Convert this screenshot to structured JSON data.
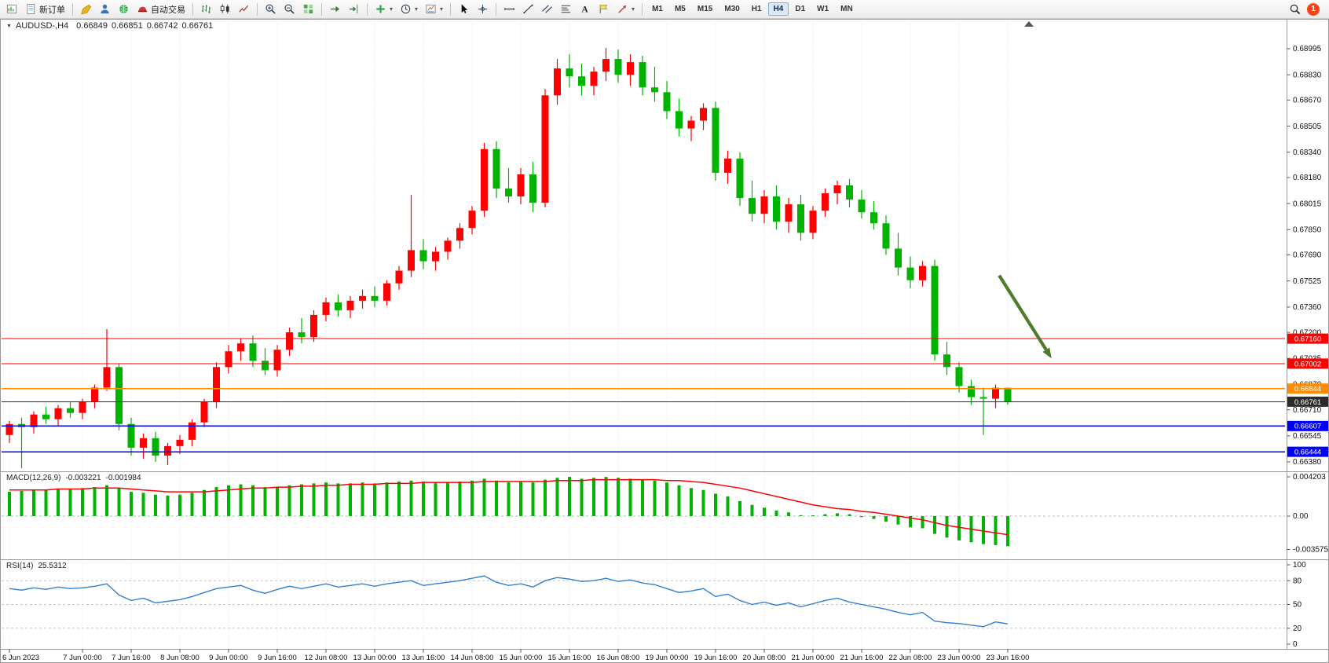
{
  "toolbar": {
    "new_order_label": "新订单",
    "autotrading_label": "自动交易",
    "timeframes": [
      "M1",
      "M5",
      "M15",
      "M30",
      "H1",
      "H4",
      "D1",
      "W1",
      "MN"
    ],
    "active_timeframe": "H4",
    "notification_count": "1"
  },
  "chart": {
    "symbol": "AUDUSD-,H4",
    "open": "0.66849",
    "high": "0.66851",
    "low": "0.66742",
    "close": "0.66761"
  },
  "indicators": {
    "macd_label": "MACD(12,26,9)",
    "macd_main_value": "-0.003221",
    "macd_signal_value": "-0.001984",
    "rsi_label": "RSI(14)",
    "rsi_value": "25.5312"
  },
  "chart_data": {
    "type": "candlestick",
    "symbol": "AUDUSD",
    "timeframe": "H4",
    "up_color": "#ff0000",
    "down_color": "#00b300",
    "candles_ohlc": [
      [
        0.6655,
        0.6664,
        0.665,
        0.6662
      ],
      [
        0.6662,
        0.6666,
        0.6634,
        0.666
      ],
      [
        0.666,
        0.667,
        0.6656,
        0.6668
      ],
      [
        0.6668,
        0.6673,
        0.6662,
        0.6665
      ],
      [
        0.6665,
        0.6674,
        0.6661,
        0.6672
      ],
      [
        0.6672,
        0.6676,
        0.6666,
        0.6669
      ],
      [
        0.6669,
        0.6678,
        0.6665,
        0.6676
      ],
      [
        0.6676,
        0.6687,
        0.6672,
        0.6685
      ],
      [
        0.6685,
        0.6722,
        0.6683,
        0.6698
      ],
      [
        0.6698,
        0.67,
        0.6658,
        0.6662
      ],
      [
        0.6662,
        0.6666,
        0.6642,
        0.6647
      ],
      [
        0.6647,
        0.6656,
        0.664,
        0.6653
      ],
      [
        0.6653,
        0.6657,
        0.6638,
        0.6642
      ],
      [
        0.6642,
        0.665,
        0.6636,
        0.6648
      ],
      [
        0.6648,
        0.6655,
        0.6643,
        0.6652
      ],
      [
        0.6652,
        0.6665,
        0.6648,
        0.6663
      ],
      [
        0.6663,
        0.6678,
        0.666,
        0.6676
      ],
      [
        0.6676,
        0.6701,
        0.6672,
        0.6698
      ],
      [
        0.6698,
        0.6712,
        0.6694,
        0.6708
      ],
      [
        0.6708,
        0.6716,
        0.6702,
        0.6713
      ],
      [
        0.6713,
        0.6718,
        0.6698,
        0.6702
      ],
      [
        0.6702,
        0.671,
        0.6693,
        0.6696
      ],
      [
        0.6696,
        0.6712,
        0.6692,
        0.6709
      ],
      [
        0.6709,
        0.6723,
        0.6705,
        0.672
      ],
      [
        0.672,
        0.6729,
        0.6713,
        0.6717
      ],
      [
        0.6717,
        0.6734,
        0.6714,
        0.6731
      ],
      [
        0.6731,
        0.6742,
        0.6727,
        0.6739
      ],
      [
        0.6739,
        0.6744,
        0.673,
        0.6734
      ],
      [
        0.6734,
        0.6743,
        0.6729,
        0.674
      ],
      [
        0.674,
        0.6747,
        0.6735,
        0.6743
      ],
      [
        0.6743,
        0.6749,
        0.6736,
        0.674
      ],
      [
        0.674,
        0.6753,
        0.6737,
        0.6751
      ],
      [
        0.6751,
        0.6762,
        0.6747,
        0.6759
      ],
      [
        0.6759,
        0.6807,
        0.6755,
        0.6772
      ],
      [
        0.6772,
        0.6779,
        0.676,
        0.6765
      ],
      [
        0.6765,
        0.6774,
        0.6759,
        0.6771
      ],
      [
        0.6771,
        0.678,
        0.6766,
        0.6778
      ],
      [
        0.6778,
        0.6789,
        0.6773,
        0.6786
      ],
      [
        0.6786,
        0.68,
        0.6782,
        0.6797
      ],
      [
        0.6797,
        0.684,
        0.6793,
        0.6836
      ],
      [
        0.6836,
        0.6841,
        0.6805,
        0.6811
      ],
      [
        0.6811,
        0.6824,
        0.6802,
        0.6806
      ],
      [
        0.6806,
        0.6824,
        0.6801,
        0.682
      ],
      [
        0.682,
        0.6828,
        0.6796,
        0.6802
      ],
      [
        0.6802,
        0.6874,
        0.6799,
        0.687
      ],
      [
        0.687,
        0.6893,
        0.6864,
        0.6887
      ],
      [
        0.6887,
        0.6896,
        0.6875,
        0.6882
      ],
      [
        0.6882,
        0.689,
        0.687,
        0.6876
      ],
      [
        0.6876,
        0.6888,
        0.687,
        0.6885
      ],
      [
        0.6885,
        0.69,
        0.6879,
        0.6893
      ],
      [
        0.6893,
        0.6899,
        0.6878,
        0.6883
      ],
      [
        0.6883,
        0.6896,
        0.6876,
        0.6891
      ],
      [
        0.6891,
        0.6895,
        0.687,
        0.6875
      ],
      [
        0.6875,
        0.6888,
        0.6866,
        0.6872
      ],
      [
        0.6872,
        0.6879,
        0.6855,
        0.686
      ],
      [
        0.686,
        0.6868,
        0.6844,
        0.6849
      ],
      [
        0.6849,
        0.6857,
        0.6841,
        0.6854
      ],
      [
        0.6854,
        0.6865,
        0.6848,
        0.6862
      ],
      [
        0.6862,
        0.6866,
        0.6816,
        0.6821
      ],
      [
        0.6821,
        0.6835,
        0.6814,
        0.683
      ],
      [
        0.683,
        0.6834,
        0.68,
        0.6805
      ],
      [
        0.6805,
        0.6816,
        0.679,
        0.6795
      ],
      [
        0.6795,
        0.681,
        0.6789,
        0.6806
      ],
      [
        0.6806,
        0.6813,
        0.6785,
        0.679
      ],
      [
        0.679,
        0.6805,
        0.6783,
        0.6801
      ],
      [
        0.6801,
        0.6807,
        0.6778,
        0.6783
      ],
      [
        0.6783,
        0.68,
        0.6779,
        0.6797
      ],
      [
        0.6797,
        0.6811,
        0.6793,
        0.6808
      ],
      [
        0.6808,
        0.6816,
        0.6801,
        0.6813
      ],
      [
        0.6813,
        0.6817,
        0.6799,
        0.6804
      ],
      [
        0.6804,
        0.681,
        0.6792,
        0.6796
      ],
      [
        0.6796,
        0.6803,
        0.6785,
        0.6789
      ],
      [
        0.6789,
        0.6794,
        0.6769,
        0.6773
      ],
      [
        0.6773,
        0.6783,
        0.6756,
        0.6761
      ],
      [
        0.6761,
        0.6768,
        0.6748,
        0.6753
      ],
      [
        0.6753,
        0.6765,
        0.6749,
        0.6762
      ],
      [
        0.6762,
        0.6766,
        0.6702,
        0.6706
      ],
      [
        0.6706,
        0.6714,
        0.6693,
        0.6698
      ],
      [
        0.6698,
        0.6701,
        0.6682,
        0.6686
      ],
      [
        0.6686,
        0.669,
        0.6674,
        0.6679
      ],
      [
        0.6679,
        0.6685,
        0.6655,
        0.6678
      ],
      [
        0.6678,
        0.6687,
        0.6672,
        0.66849
      ],
      [
        0.66849,
        0.66851,
        0.66742,
        0.66761
      ]
    ],
    "horizontal_lines": [
      {
        "price": 0.6716,
        "color": "#ff0000",
        "label": "0.67160",
        "width": 1.2
      },
      {
        "price": 0.67002,
        "color": "#ff0000",
        "label": "0.67002",
        "width": 1.2
      },
      {
        "price": 0.66844,
        "color": "#ff8c00",
        "label": "0.66844",
        "width": 1.4
      },
      {
        "price": 0.66761,
        "color": "#2b2b2b",
        "label": "0.66761",
        "width": 1
      },
      {
        "price": 0.66607,
        "color": "#0000ff",
        "label": "0.66607",
        "width": 1.4
      },
      {
        "price": 0.66444,
        "color": "#0000ff",
        "label": "0.66444",
        "width": 1.4
      }
    ],
    "annotation_arrow": {
      "from_index": 81.3,
      "from_price": 0.6756,
      "to_index": 85.6,
      "to_price": 0.67035,
      "color": "#4f7b2b"
    },
    "price_axis_labels": [
      "0.68995",
      "0.68830",
      "0.68670",
      "0.68505",
      "0.68340",
      "0.68180",
      "0.68015",
      "0.67850",
      "0.67690",
      "0.67525",
      "0.67360",
      "0.67200",
      "0.67035",
      "0.66870",
      "0.66710",
      "0.66545",
      "0.66380"
    ],
    "time_ticks": {
      "indices": [
        0,
        6,
        10,
        14,
        18,
        22,
        26,
        30,
        34,
        38,
        42,
        46,
        50,
        54,
        58,
        62,
        66,
        70,
        74,
        78,
        82
      ],
      "labels": [
        "6 Jun 2023",
        "7 Jun 00:00",
        "7 Jun 16:00",
        "8 Jun 08:00",
        "9 Jun 00:00",
        "9 Jun 16:00",
        "12 Jun 08:00",
        "13 Jun 00:00",
        "13 Jun 16:00",
        "14 Jun 08:00",
        "15 Jun 00:00",
        "15 Jun 16:00",
        "16 Jun 08:00",
        "19 Jun 00:00",
        "19 Jun 16:00",
        "20 Jun 08:00",
        "21 Jun 00:00",
        "21 Jun 16:00",
        "22 Jun 08:00",
        "23 Jun 00:00",
        "23 Jun 16:00"
      ]
    },
    "macd": {
      "histogram_color": "#00b300",
      "signal_color": "#ff0000",
      "axis_labels": [
        "0.004203",
        "0.00",
        "-0.003575"
      ],
      "histogram": [
        0.0026,
        0.0027,
        0.0028,
        0.0028,
        0.0029,
        0.0029,
        0.003,
        0.0031,
        0.0033,
        0.003,
        0.0026,
        0.0025,
        0.0023,
        0.0022,
        0.0023,
        0.0025,
        0.0028,
        0.0031,
        0.0033,
        0.0034,
        0.0033,
        0.0031,
        0.0031,
        0.0033,
        0.0034,
        0.0035,
        0.0036,
        0.0035,
        0.0035,
        0.0036,
        0.0035,
        0.0036,
        0.0037,
        0.0038,
        0.0037,
        0.0036,
        0.0036,
        0.0037,
        0.0038,
        0.004,
        0.0038,
        0.0036,
        0.0037,
        0.0036,
        0.0039,
        0.0041,
        0.0042,
        0.004,
        0.0041,
        0.0042,
        0.0041,
        0.004,
        0.0039,
        0.0038,
        0.0036,
        0.0033,
        0.003,
        0.0028,
        0.0024,
        0.0021,
        0.0016,
        0.0012,
        0.0009,
        0.0006,
        0.0004,
        0.0001,
        0.0,
        0.0002,
        0.0003,
        0.0002,
        -0.0001,
        -0.0003,
        -0.0006,
        -0.0009,
        -0.0012,
        -0.0013,
        -0.0019,
        -0.0023,
        -0.0026,
        -0.0028,
        -0.003,
        -0.0031,
        -0.003221
      ],
      "signal": [
        0.0028,
        0.0028,
        0.0028,
        0.0028,
        0.0029,
        0.0029,
        0.0029,
        0.003,
        0.003,
        0.003,
        0.0029,
        0.0028,
        0.0027,
        0.0026,
        0.0026,
        0.0026,
        0.0026,
        0.0027,
        0.0028,
        0.0029,
        0.003,
        0.003,
        0.0031,
        0.0031,
        0.0032,
        0.0032,
        0.0033,
        0.0033,
        0.0034,
        0.0034,
        0.0034,
        0.0035,
        0.0035,
        0.0035,
        0.0036,
        0.0036,
        0.0036,
        0.0036,
        0.0036,
        0.0037,
        0.0037,
        0.0037,
        0.0037,
        0.0037,
        0.0037,
        0.0038,
        0.0038,
        0.0038,
        0.0039,
        0.0039,
        0.0039,
        0.0039,
        0.0039,
        0.0039,
        0.0038,
        0.0038,
        0.0037,
        0.0036,
        0.0034,
        0.0032,
        0.003,
        0.0027,
        0.0024,
        0.0021,
        0.0018,
        0.0015,
        0.0012,
        0.001,
        0.0008,
        0.0007,
        0.0005,
        0.0004,
        0.0002,
        0.0,
        -0.0002,
        -0.0004,
        -0.0007,
        -0.001,
        -0.0012,
        -0.0014,
        -0.0016,
        -0.0018,
        -0.001984
      ]
    },
    "rsi": {
      "line_color": "#3080d0",
      "levels": [
        "100",
        "80",
        "50",
        "20",
        "0"
      ],
      "values": [
        70,
        68,
        71,
        69,
        72,
        70,
        71,
        73,
        76,
        62,
        55,
        58,
        52,
        54,
        56,
        60,
        65,
        70,
        72,
        74,
        68,
        64,
        69,
        73,
        70,
        73,
        76,
        72,
        74,
        76,
        73,
        76,
        78,
        80,
        74,
        76,
        78,
        80,
        83,
        86,
        78,
        74,
        76,
        72,
        80,
        84,
        82,
        79,
        80,
        83,
        79,
        81,
        77,
        75,
        70,
        65,
        67,
        70,
        60,
        63,
        55,
        50,
        53,
        49,
        52,
        47,
        51,
        55,
        58,
        53,
        50,
        47,
        44,
        40,
        37,
        40,
        29,
        27,
        26,
        24,
        22,
        28,
        25.5312
      ]
    }
  }
}
